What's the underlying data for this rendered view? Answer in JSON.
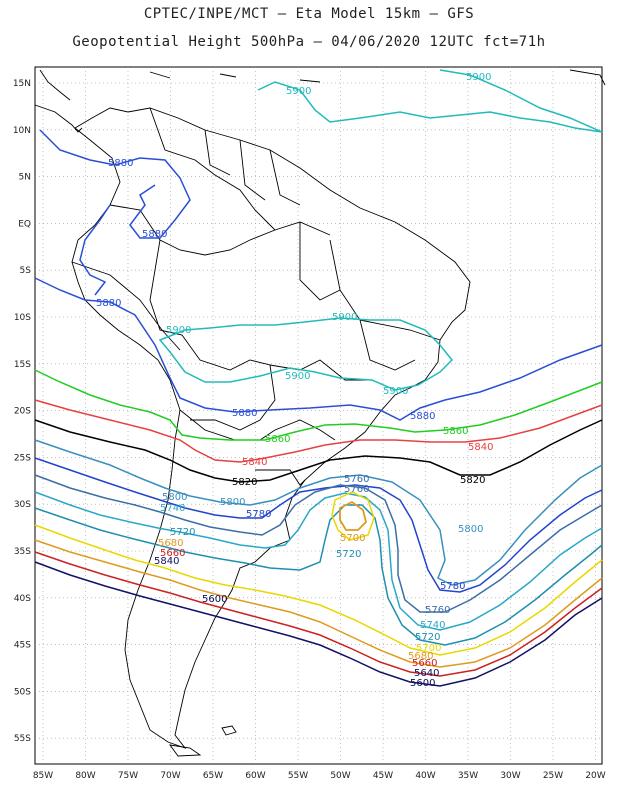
{
  "title_line1": "CPTEC/INPE/MCT –  Eta Model 15km – GFS",
  "title_line2": "Geopotential Height 500hPa – 04/06/2020 12UTC fct=71h",
  "lat_labels": [
    "15N",
    "10N",
    "5N",
    "EQ",
    "5S",
    "10S",
    "15S",
    "20S",
    "25S",
    "30S",
    "35S",
    "40S",
    "45S",
    "50S",
    "55S"
  ],
  "lon_labels": [
    "85W",
    "80W",
    "75W",
    "70W",
    "65W",
    "60W",
    "55W",
    "50W",
    "45W",
    "40W",
    "35W",
    "30W",
    "25W",
    "20W"
  ],
  "contours": [
    {
      "value": "5900",
      "color": "#22bbbb"
    },
    {
      "value": "5880",
      "color": "#2a4fd6"
    },
    {
      "value": "5860",
      "color": "#22cc22"
    },
    {
      "value": "5840",
      "color": "#e84040"
    },
    {
      "value": "5820",
      "color": "#000000"
    },
    {
      "value": "5800",
      "color": "#3a8fbf"
    },
    {
      "value": "5780",
      "color": "#2244cc"
    },
    {
      "value": "5760",
      "color": "#3b6ea8"
    },
    {
      "value": "5740",
      "color": "#29a7c9"
    },
    {
      "value": "5720",
      "color": "#1f8fb0"
    },
    {
      "value": "5700",
      "color": "#e8d800"
    },
    {
      "value": "5680",
      "color": "#e09a20"
    },
    {
      "value": "5660",
      "color": "#cc2222"
    },
    {
      "value": "5640",
      "color": "#111166"
    },
    {
      "value": "5600",
      "color": "#0a0a50"
    }
  ],
  "labels": {
    "c5900a": "5900",
    "c5900b": "5900",
    "c5900c": "5900",
    "c5900d": "5900",
    "c5900e": "5900",
    "c5900f": "5900",
    "c5880a": "5880",
    "c5880b": "5880",
    "c5880c": "5880",
    "c5880d": "5880",
    "c5880e": "5880",
    "c5860a": "5860",
    "c5860b": "5860",
    "c5840a": "5840",
    "c5840b": "5840",
    "c5840c": "5840",
    "c5820a": "5820",
    "c5820b": "5820",
    "c5800a": "5800",
    "c5800b": "5800",
    "c5800c": "5800",
    "c5780a": "5780",
    "c5780b": "5780",
    "c5760a": "5760",
    "c5760b": "5760",
    "c5760c": "5760",
    "c5740a": "5740",
    "c5740b": "5740",
    "c5720a": "5720",
    "c5720b": "5720",
    "c5720c": "5720",
    "c5700a": "5700",
    "c5700b": "5700",
    "c5680a": "5680",
    "c5680b": "5680",
    "c5660a": "5660",
    "c5660b": "5660",
    "c5640a": "5640",
    "c5600a": "5600",
    "c5600b": "5600"
  }
}
